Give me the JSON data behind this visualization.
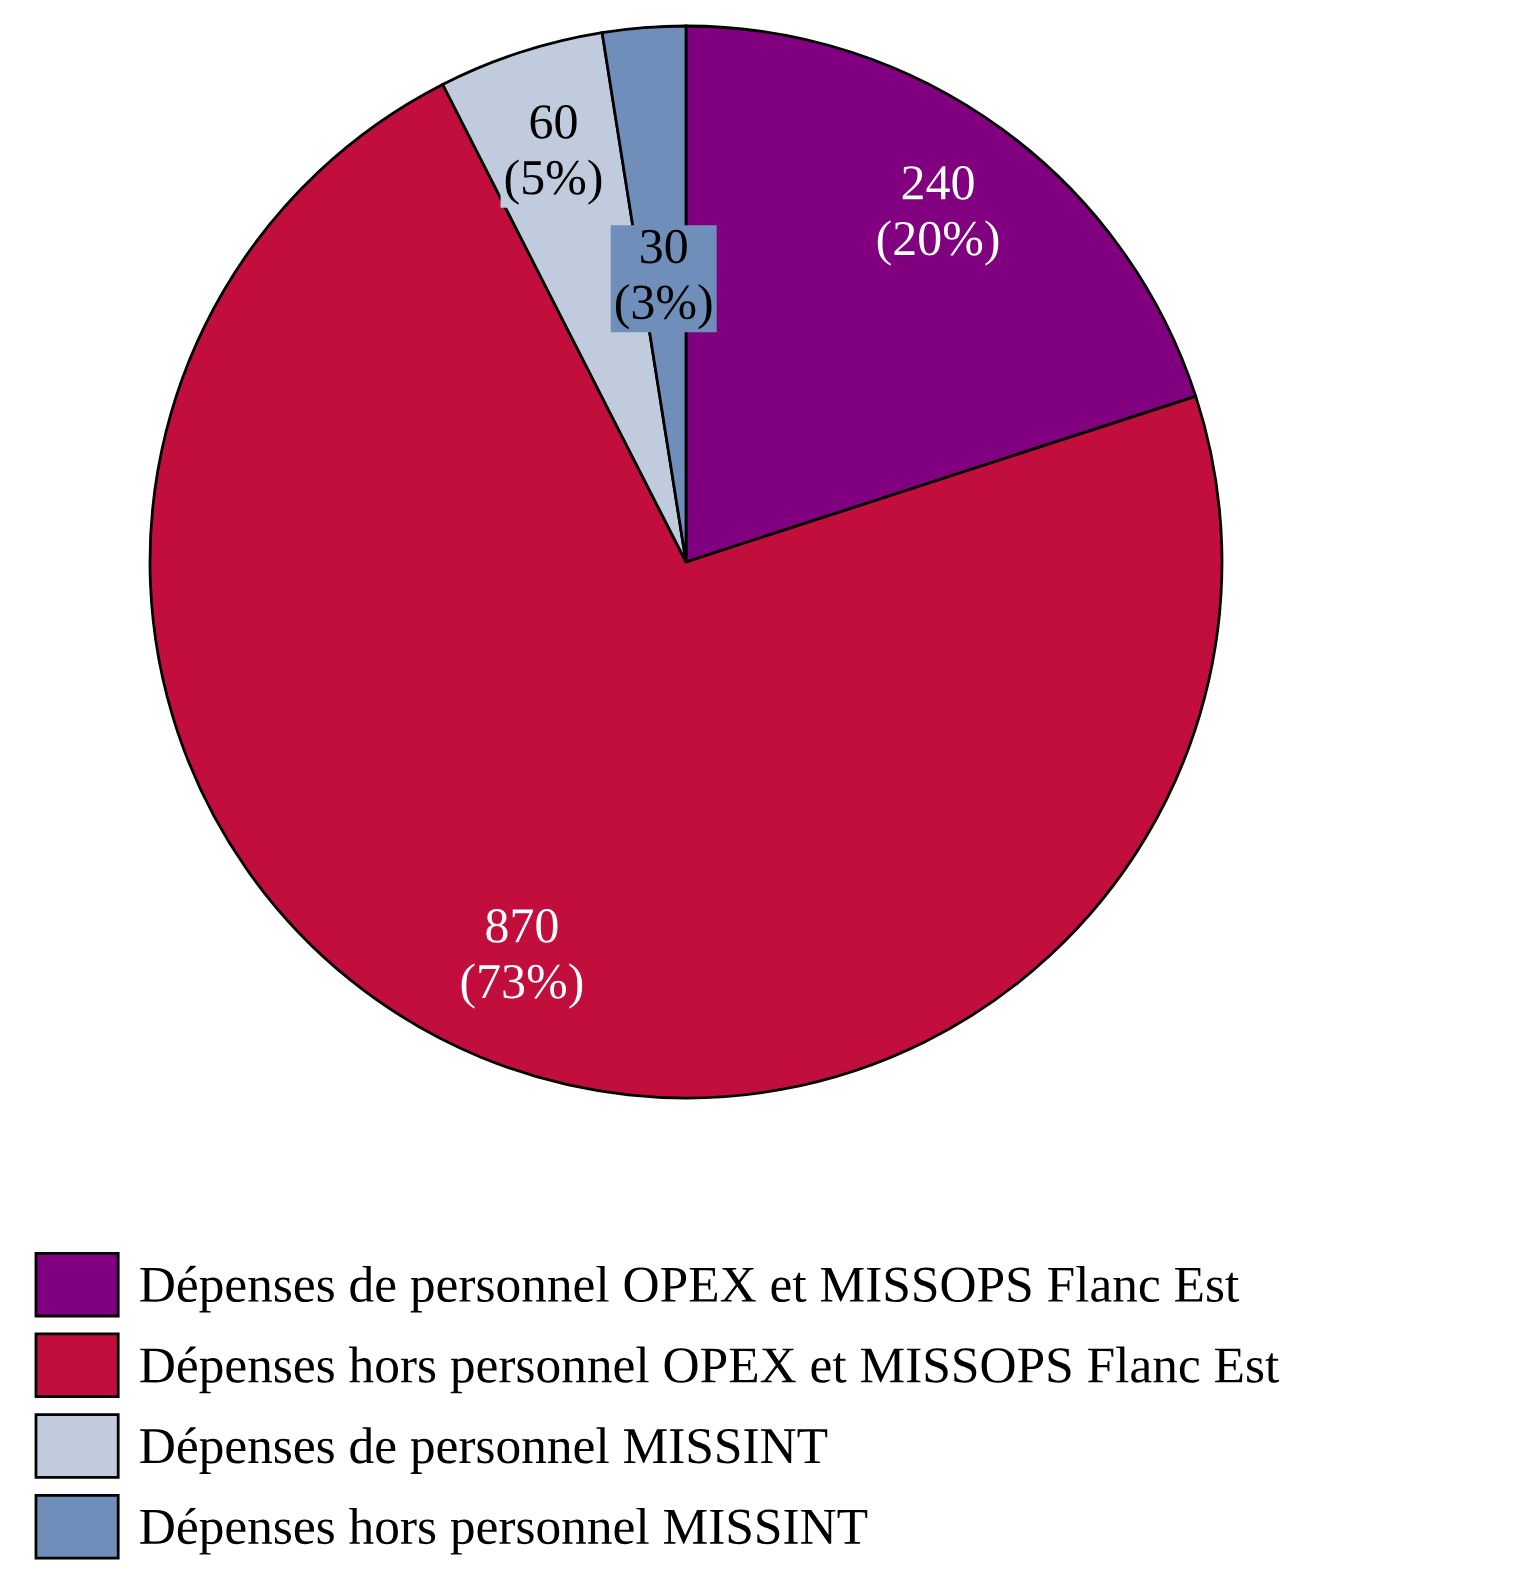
{
  "chart_data": {
    "type": "pie",
    "categories": [
      "Dépenses de personnel OPEX et MISSOPS Flanc Est",
      "Dépenses hors personnel OPEX et MISSOPS Flanc Est",
      "Dépenses de personnel MISSINT",
      "Dépenses hors personnel MISSINT"
    ],
    "values": [
      240,
      870,
      60,
      30
    ],
    "value_labels": [
      "240\n(20%)",
      "870\n(73%)",
      "60\n(5%)",
      "30\n(3%)"
    ],
    "colors": [
      "#800080",
      "#c20e3d",
      "#c0cbdd",
      "#6f8fba"
    ],
    "legend": "bottom"
  }
}
